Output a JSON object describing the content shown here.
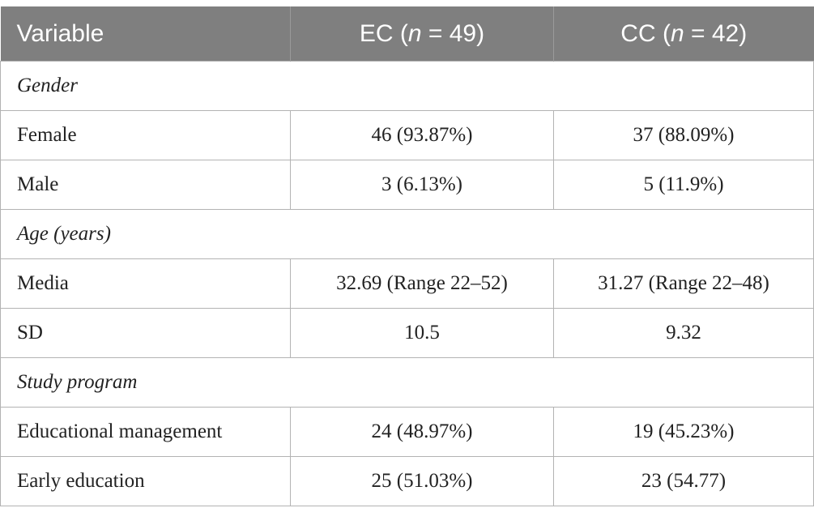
{
  "table": {
    "header": {
      "variable": "Variable",
      "ec_prefix": "EC (",
      "ec_n": "n",
      "ec_suffix": " = 49)",
      "cc_prefix": "CC (",
      "cc_n": "n",
      "cc_suffix": " = 42)"
    },
    "sections": [
      {
        "title": "Gender",
        "rows": [
          {
            "label": "Female",
            "ec": "46 (93.87%)",
            "cc": "37 (88.09%)"
          },
          {
            "label": "Male",
            "ec": "3 (6.13%)",
            "cc": "5 (11.9%)"
          }
        ]
      },
      {
        "title": "Age (years)",
        "rows": [
          {
            "label": "Media",
            "ec": "32.69 (Range 22–52)",
            "cc": "31.27 (Range 22–48)"
          },
          {
            "label": "SD",
            "ec": "10.5",
            "cc": "9.32"
          }
        ]
      },
      {
        "title": "Study program",
        "rows": [
          {
            "label": "Educational management",
            "ec": "24 (48.97%)",
            "cc": "19 (45.23%)"
          },
          {
            "label": "Early education",
            "ec": "25 (51.03%)",
            "cc": "23 (54.77)"
          }
        ]
      }
    ]
  }
}
